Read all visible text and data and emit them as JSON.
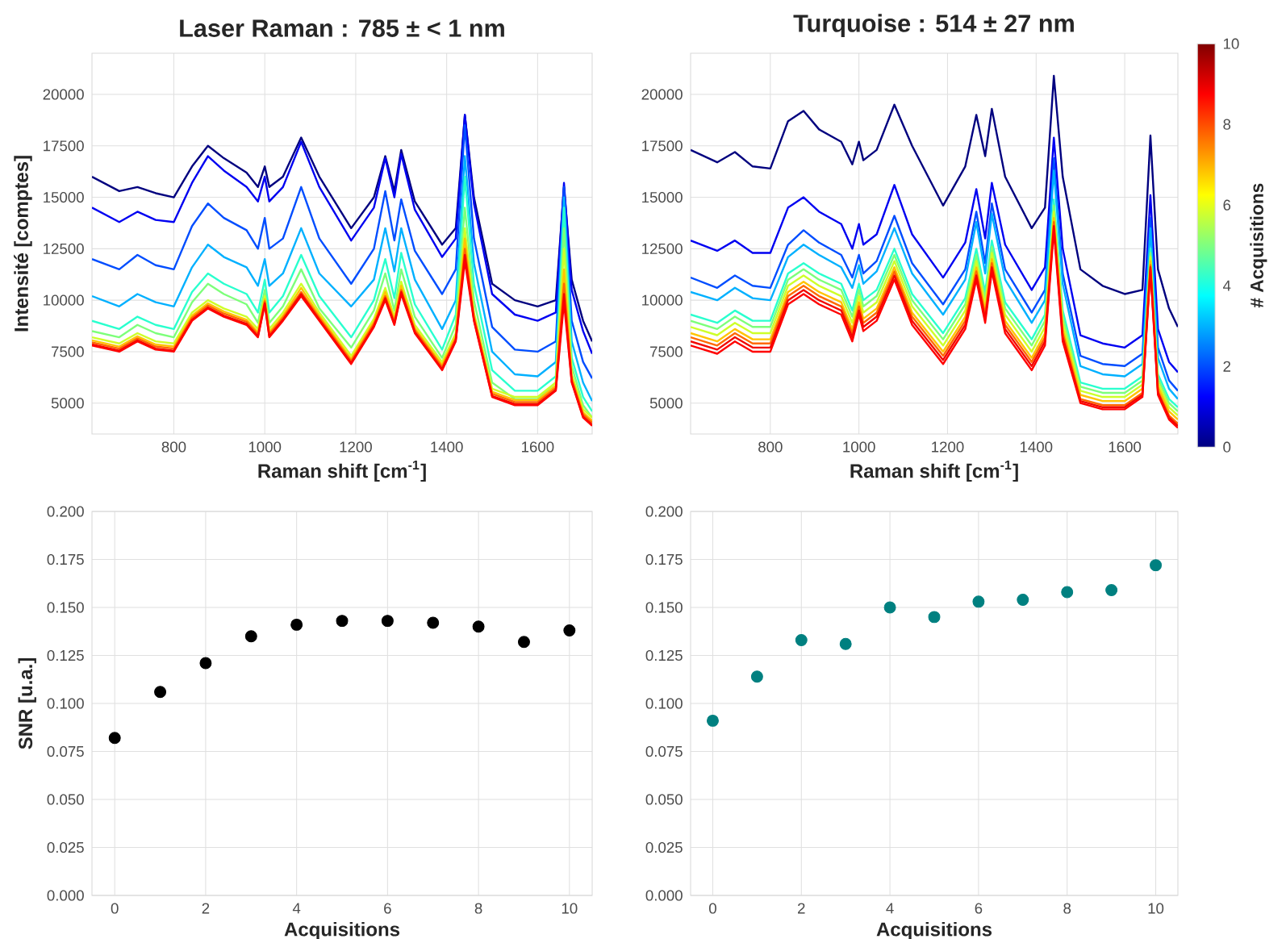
{
  "chart_data": [
    {
      "type": "line",
      "title": "Laser Raman : 785 ± < 1 nm",
      "xlabel": "Raman shift [cm$^{-1}$]",
      "ylabel": "Intensité [comptes]",
      "grid": true,
      "xlim": [
        620,
        1720
      ],
      "ylim": [
        3500,
        22000
      ],
      "xticks": [
        800,
        1000,
        1200,
        1400,
        1600
      ],
      "yticks": [
        5000,
        7500,
        10000,
        12500,
        15000,
        17500,
        20000
      ],
      "x": [
        620,
        680,
        720,
        760,
        800,
        840,
        875,
        910,
        960,
        985,
        1000,
        1010,
        1040,
        1080,
        1120,
        1190,
        1240,
        1265,
        1285,
        1300,
        1330,
        1390,
        1420,
        1440,
        1460,
        1500,
        1550,
        1600,
        1640,
        1658,
        1675,
        1700,
        1720
      ],
      "series": [
        {
          "color": "#00007f",
          "values": [
            16000,
            15300,
            15500,
            15200,
            15000,
            16500,
            17500,
            16900,
            16200,
            15500,
            16500,
            15500,
            16000,
            17900,
            16000,
            13500,
            15000,
            17000,
            15300,
            17300,
            14800,
            12700,
            13500,
            19000,
            15000,
            10800,
            10000,
            9700,
            10000,
            15500,
            11000,
            9000,
            8000
          ]
        },
        {
          "color": "#0000f1",
          "values": [
            14500,
            13800,
            14300,
            13900,
            13800,
            15700,
            17000,
            16300,
            15500,
            14800,
            16000,
            14800,
            15500,
            17700,
            15500,
            12900,
            14500,
            16900,
            15000,
            17100,
            14400,
            12100,
            13000,
            19000,
            14700,
            10300,
            9300,
            9000,
            9400,
            15700,
            10500,
            8500,
            7400
          ]
        },
        {
          "color": "#004dff",
          "values": [
            12000,
            11500,
            12200,
            11700,
            11500,
            13600,
            14700,
            14000,
            13400,
            12500,
            14000,
            12500,
            13000,
            15500,
            13000,
            10800,
            12500,
            15300,
            12900,
            14900,
            12400,
            10300,
            11500,
            18500,
            13000,
            8700,
            7600,
            7500,
            8000,
            15500,
            9000,
            7000,
            6200
          ]
        },
        {
          "color": "#00b0ff",
          "values": [
            10200,
            9700,
            10300,
            9900,
            9700,
            11600,
            12700,
            12100,
            11600,
            10700,
            12000,
            10700,
            11300,
            13500,
            11300,
            9700,
            11000,
            13500,
            11400,
            13500,
            11000,
            8600,
            10000,
            17000,
            11800,
            7500,
            6400,
            6300,
            7000,
            15000,
            8000,
            6000,
            5100
          ]
        },
        {
          "color": "#29ffce",
          "values": [
            9000,
            8600,
            9200,
            8800,
            8600,
            10400,
            11300,
            10800,
            10300,
            9400,
            11000,
            9400,
            10200,
            12200,
            10200,
            8200,
            10000,
            12000,
            10100,
            12300,
            9800,
            7600,
            9300,
            16000,
            10800,
            6600,
            5600,
            5600,
            6300,
            14500,
            7200,
            5300,
            4600
          ]
        },
        {
          "color": "#7dff7a",
          "values": [
            8500,
            8200,
            8800,
            8400,
            8200,
            9900,
            10800,
            10300,
            9800,
            8900,
            10500,
            8900,
            9700,
            11500,
            9600,
            7700,
            9500,
            11300,
            9500,
            11500,
            9200,
            7200,
            8800,
            14500,
            10000,
            6000,
            5200,
            5200,
            6000,
            13500,
            6800,
            4900,
            4300
          ]
        },
        {
          "color": "#ceff29",
          "values": [
            8200,
            7900,
            8400,
            8000,
            7900,
            9400,
            10000,
            9600,
            9200,
            8600,
            10200,
            8600,
            9400,
            10800,
            9400,
            7300,
            9100,
            10600,
            9200,
            10900,
            8800,
            7000,
            8400,
            13500,
            9400,
            5700,
            5300,
            5300,
            6000,
            12500,
            6400,
            4700,
            4300
          ]
        },
        {
          "color": "#ffc400",
          "values": [
            8050,
            7750,
            8250,
            7850,
            7750,
            9250,
            9850,
            9450,
            9050,
            8450,
            10050,
            8450,
            9250,
            10600,
            9250,
            7150,
            8950,
            10400,
            9050,
            10700,
            8650,
            6850,
            8250,
            13000,
            9250,
            5550,
            5150,
            5150,
            5850,
            11500,
            6250,
            4550,
            4150
          ]
        },
        {
          "color": "#ff6800",
          "values": [
            7950,
            7650,
            8150,
            7750,
            7650,
            9150,
            9750,
            9350,
            8950,
            8350,
            9950,
            8350,
            9150,
            10400,
            9150,
            7050,
            8850,
            10200,
            8950,
            10500,
            8550,
            6750,
            8150,
            12500,
            9150,
            5450,
            5050,
            5050,
            5750,
            10800,
            6150,
            4450,
            4050
          ]
        },
        {
          "color": "#f10800",
          "values": [
            7850,
            7550,
            8050,
            7650,
            7550,
            9050,
            9650,
            9250,
            8850,
            8250,
            9850,
            8250,
            9050,
            10300,
            9050,
            6950,
            8750,
            10100,
            8850,
            10400,
            8450,
            6650,
            8050,
            12200,
            9050,
            5350,
            4950,
            4950,
            5650,
            10300,
            6050,
            4350,
            3950
          ]
        },
        {
          "color": "#ff0000",
          "values": [
            7800,
            7500,
            8000,
            7600,
            7500,
            9000,
            9600,
            9200,
            8800,
            8200,
            9800,
            8200,
            9000,
            10200,
            9000,
            6900,
            8700,
            10000,
            8800,
            10300,
            8400,
            6600,
            8000,
            11900,
            9000,
            5300,
            4900,
            4900,
            5600,
            9900,
            6000,
            4300,
            3900
          ]
        }
      ]
    },
    {
      "type": "line",
      "title": "Turquoise : 514 ± 27 nm",
      "xlabel": "Raman shift [cm$^{-1}$]",
      "grid": true,
      "xlim": [
        620,
        1720
      ],
      "ylim": [
        3500,
        22000
      ],
      "xticks": [
        800,
        1000,
        1200,
        1400,
        1600
      ],
      "yticks": [
        5000,
        7500,
        10000,
        12500,
        15000,
        17500,
        20000
      ],
      "clabel": "# Acquisitions",
      "clim": [
        0,
        10
      ],
      "cticks": [
        0,
        2,
        4,
        6,
        8,
        10
      ],
      "x": [
        620,
        680,
        720,
        760,
        800,
        840,
        875,
        910,
        960,
        985,
        1000,
        1010,
        1040,
        1080,
        1120,
        1190,
        1240,
        1265,
        1285,
        1300,
        1330,
        1390,
        1420,
        1440,
        1460,
        1500,
        1550,
        1600,
        1640,
        1658,
        1675,
        1700,
        1720
      ],
      "series": [
        {
          "color": "#00007f",
          "values": [
            17300,
            16700,
            17200,
            16500,
            16400,
            18700,
            19200,
            18300,
            17700,
            16600,
            17700,
            16800,
            17300,
            19500,
            17500,
            14600,
            16500,
            19000,
            17000,
            19300,
            16000,
            13500,
            14500,
            20900,
            16000,
            11500,
            10700,
            10300,
            10500,
            18000,
            11500,
            9600,
            8700
          ]
        },
        {
          "color": "#0000f1",
          "values": [
            12900,
            12400,
            12900,
            12300,
            12300,
            14500,
            15000,
            14300,
            13700,
            12500,
            13700,
            12700,
            13200,
            15600,
            13200,
            11100,
            12800,
            15400,
            13000,
            15700,
            12700,
            10500,
            11600,
            17900,
            12500,
            8300,
            7900,
            7700,
            8300,
            15100,
            8600,
            7000,
            6500
          ]
        },
        {
          "color": "#004dff",
          "values": [
            11100,
            10600,
            11200,
            10700,
            10600,
            12700,
            13400,
            12800,
            12200,
            11100,
            12200,
            11300,
            11900,
            14100,
            11800,
            9800,
            11500,
            14300,
            11800,
            14700,
            11500,
            9400,
            10500,
            16900,
            11300,
            7300,
            6900,
            6800,
            7400,
            14000,
            7700,
            6100,
            5600
          ]
        },
        {
          "color": "#00b0ff",
          "values": [
            10400,
            10000,
            10600,
            10100,
            10000,
            12100,
            12700,
            12200,
            11600,
            10600,
            11700,
            10800,
            11400,
            13500,
            11300,
            9300,
            11000,
            13800,
            11300,
            14200,
            11000,
            8900,
            10000,
            16300,
            10800,
            6800,
            6400,
            6300,
            6900,
            13500,
            7200,
            5700,
            5200
          ]
        },
        {
          "color": "#29ffce",
          "values": [
            9300,
            8900,
            9500,
            9000,
            9000,
            11300,
            11800,
            11300,
            10800,
            9500,
            10800,
            10000,
            10500,
            12500,
            10300,
            8400,
            10100,
            12500,
            10400,
            12900,
            9900,
            8100,
            9300,
            14900,
            9500,
            6000,
            5700,
            5700,
            6300,
            12500,
            6400,
            5200,
            4800
          ]
        },
        {
          "color": "#7dff7a",
          "values": [
            9000,
            8600,
            9200,
            8700,
            8700,
            11000,
            11500,
            11000,
            10500,
            9200,
            10500,
            9700,
            10200,
            12200,
            10000,
            8100,
            9800,
            12200,
            10100,
            12600,
            9600,
            7800,
            9000,
            14600,
            9200,
            5800,
            5500,
            5500,
            6100,
            12300,
            6200,
            5000,
            4600
          ]
        },
        {
          "color": "#ceff29",
          "values": [
            8700,
            8300,
            8900,
            8400,
            8400,
            10700,
            11200,
            10700,
            10200,
            8900,
            10200,
            9400,
            9900,
            11900,
            9700,
            7800,
            9500,
            11900,
            9800,
            12300,
            9300,
            7500,
            8700,
            14300,
            8900,
            5600,
            5300,
            5300,
            5900,
            12100,
            6000,
            4800,
            4400
          ]
        },
        {
          "color": "#ffc400",
          "values": [
            8400,
            8000,
            8600,
            8100,
            8100,
            10400,
            10900,
            10400,
            9900,
            8600,
            9900,
            9100,
            9600,
            11600,
            9400,
            7500,
            9200,
            11600,
            9500,
            12000,
            9000,
            7200,
            8400,
            14000,
            8600,
            5400,
            5100,
            5100,
            5700,
            11900,
            5800,
            4600,
            4200
          ]
        },
        {
          "color": "#ff6800",
          "values": [
            8200,
            7800,
            8400,
            7900,
            7900,
            10200,
            10700,
            10200,
            9700,
            8400,
            9700,
            8900,
            9400,
            11400,
            9200,
            7300,
            9000,
            11400,
            9300,
            11800,
            8800,
            7000,
            8200,
            13800,
            8400,
            5200,
            4900,
            4900,
            5500,
            11700,
            5600,
            4400,
            4000
          ]
        },
        {
          "color": "#f10800",
          "values": [
            8000,
            7600,
            8200,
            7700,
            7700,
            10000,
            10500,
            10000,
            9500,
            8200,
            9500,
            8700,
            9200,
            11200,
            9000,
            7100,
            8800,
            11200,
            9100,
            11600,
            8600,
            6800,
            8000,
            13600,
            8200,
            5100,
            4800,
            4800,
            5400,
            11600,
            5500,
            4300,
            3900
          ]
        },
        {
          "color": "#ff0000",
          "values": [
            7800,
            7400,
            8000,
            7500,
            7500,
            9800,
            10300,
            9800,
            9300,
            8000,
            9300,
            8500,
            9000,
            11000,
            8800,
            6900,
            8600,
            11000,
            8900,
            11400,
            8400,
            6600,
            7800,
            13400,
            8000,
            5000,
            4700,
            4700,
            5300,
            11500,
            5400,
            4200,
            3800
          ]
        }
      ]
    },
    {
      "type": "scatter",
      "xlabel": "Acquisitions",
      "ylabel": "SNR [u.a.]",
      "grid": true,
      "marker": "circle",
      "xlim": [
        -0.5,
        10.5
      ],
      "ylim": [
        0,
        0.2
      ],
      "xticks": [
        0,
        2,
        4,
        6,
        8,
        10
      ],
      "yticks": [
        {
          "value": 0,
          "label": "0.000"
        },
        0.025,
        {
          "value": 0.05,
          "label": "0.050"
        },
        0.075,
        {
          "value": 0.1,
          "label": "0.100"
        },
        0.125,
        {
          "value": 0.15,
          "label": "0.150"
        },
        0.175,
        {
          "value": 0.2,
          "label": "0.200"
        }
      ],
      "x": [
        0,
        1,
        2,
        3,
        4,
        5,
        6,
        7,
        8,
        9,
        10
      ],
      "series": [
        {
          "color": "#000000",
          "values": [
            0.082,
            0.106,
            0.121,
            0.135,
            0.141,
            0.143,
            0.143,
            0.142,
            0.14,
            0.132,
            0.138
          ]
        }
      ]
    },
    {
      "type": "scatter",
      "xlabel": "Acquisitions",
      "grid": true,
      "marker": "circle",
      "xlim": [
        -0.5,
        10.5
      ],
      "ylim": [
        0,
        0.2
      ],
      "xticks": [
        0,
        2,
        4,
        6,
        8,
        10
      ],
      "yticks": [
        {
          "value": 0,
          "label": "0.000"
        },
        0.025,
        {
          "value": 0.05,
          "label": "0.050"
        },
        0.075,
        {
          "value": 0.1,
          "label": "0.100"
        },
        0.125,
        {
          "value": 0.15,
          "label": "0.150"
        },
        0.175,
        {
          "value": 0.2,
          "label": "0.200"
        }
      ],
      "x": [
        0,
        1,
        2,
        3,
        4,
        5,
        6,
        7,
        8,
        9,
        10
      ],
      "series": [
        {
          "color": "#008080",
          "values": [
            0.091,
            0.114,
            0.133,
            0.131,
            0.15,
            0.145,
            0.153,
            0.154,
            0.158,
            0.159,
            0.172
          ]
        }
      ]
    }
  ]
}
